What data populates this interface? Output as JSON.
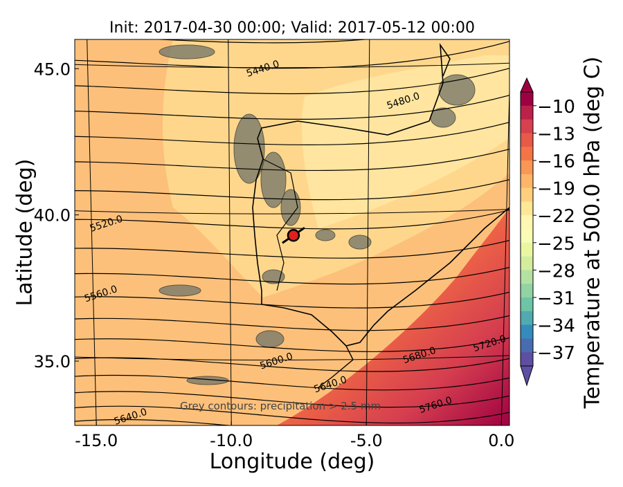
{
  "chart_data": {
    "type": "contour-map",
    "title": "Init: 2017-04-30 00:00; Valid: 2017-05-12 00:00",
    "xlabel": "Longitude (deg)",
    "ylabel": "Latitude (deg)",
    "xlim": [
      -15.8,
      0.3
    ],
    "ylim": [
      32.8,
      46.0
    ],
    "xticks": [
      -15.0,
      -10.0,
      -5.0,
      0.0
    ],
    "xtick_labels": [
      "-15.0",
      "-10.0",
      "-5.0",
      "0.0"
    ],
    "yticks": [
      35.0,
      40.0,
      45.0
    ],
    "ytick_labels": [
      "35.0",
      "40.0",
      "45.0"
    ],
    "colorbar": {
      "label": "Temperature at 500.0 hPa (deg C)",
      "ticks": [
        -10,
        -13,
        -16,
        -19,
        -22,
        -25,
        -28,
        -31,
        -34,
        -37
      ],
      "tick_labels": [
        "−10",
        "−13",
        "−16",
        "−19",
        "−22",
        "−25",
        "−28",
        "−31",
        "−34",
        "−37"
      ],
      "colormap": "Spectral_r",
      "range": [
        -38.5,
        -8.5
      ],
      "extend": "both"
    },
    "height_contours": [
      {
        "value": 5440.0,
        "label": "5440.0",
        "label_lon": -8.8,
        "label_lat": 44.9
      },
      {
        "value": 5480.0,
        "label": "5480.0",
        "label_lon": -3.6,
        "label_lat": 43.8
      },
      {
        "value": 5520.0,
        "label": "5520.0",
        "label_lon": -14.6,
        "label_lat": 39.6
      },
      {
        "value": 5560.0,
        "label": "5560.0",
        "label_lon": -14.8,
        "label_lat": 37.2
      },
      {
        "value": 5600.0,
        "label": "5600.0",
        "label_lon": -8.3,
        "label_lat": 34.9
      },
      {
        "value": 5640.0,
        "label": "5640.0",
        "label_lon": -6.3,
        "label_lat": 34.1
      },
      {
        "value": 5640.0,
        "label": "5640.0",
        "label_lon": -13.7,
        "label_lat": 33.0
      },
      {
        "value": 5680.0,
        "label": "5680.0",
        "label_lon": -3.0,
        "label_lat": 35.1
      },
      {
        "value": 5720.0,
        "label": "5720.0",
        "label_lon": -0.4,
        "label_lat": 35.5
      },
      {
        "value": 5760.0,
        "label": "5760.0",
        "label_lon": -2.4,
        "label_lat": 33.4
      }
    ],
    "marker": {
      "lon": -7.7,
      "lat": 39.3
    },
    "annotation": "Grey contours: precipitation > 2.5 mm",
    "grid": true
  },
  "colors": {
    "background_fill": "#fcc780",
    "land_fill": "#fed88e",
    "warm_fill": "#d8424b",
    "contour": "#000000",
    "marker_fill": "#e02020",
    "precip_grey": "#7a7a6a"
  }
}
